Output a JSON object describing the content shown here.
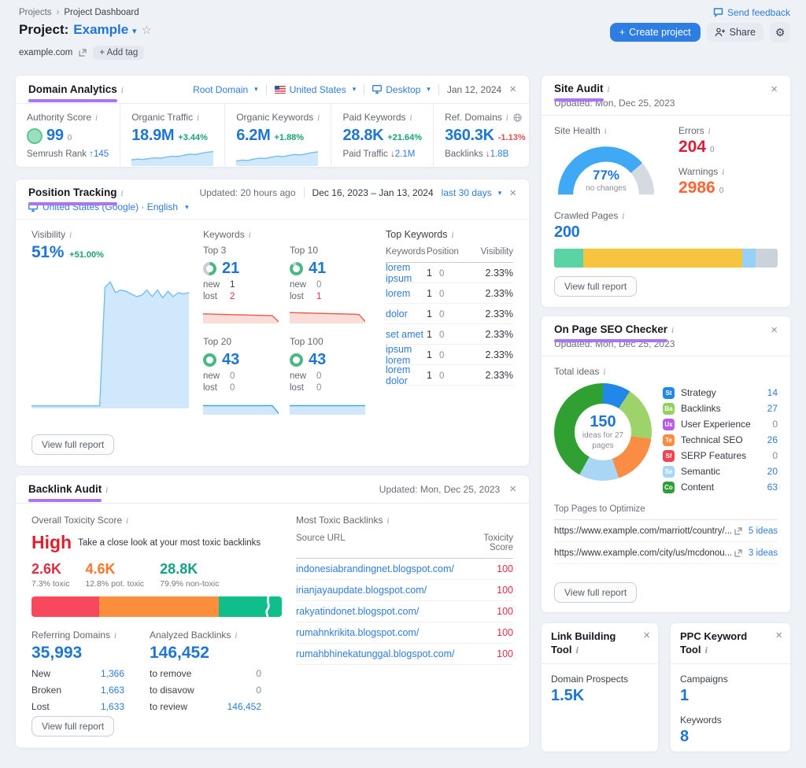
{
  "icons": {
    "chevron_down": "▾",
    "close": "×",
    "up_arrow": "↑",
    "down_arrow": "↓",
    "star": "☆",
    "gear": "⚙",
    "breadcrumb_sep": "›"
  },
  "header": {
    "breadcrumb_root": "Projects",
    "breadcrumb_current": "Project Dashboard",
    "send_feedback": "Send feedback",
    "project_label": "Project:",
    "project_name": "Example",
    "domain": "example.com",
    "add_tag": "+ Add tag",
    "create_project": "Create project",
    "create_project_plus": "+",
    "share": "Share"
  },
  "ui": {
    "view_full_report": "View full report"
  },
  "domain_analytics": {
    "title": "Domain Analytics",
    "filters": {
      "scope": "Root Domain",
      "country": "United States",
      "device": "Desktop",
      "date": "Jan 12, 2024"
    },
    "authority": {
      "label": "Authority Score",
      "value": "99",
      "delta": "0",
      "sub_label": "Semrush Rank",
      "sub_value": "145"
    },
    "organic_traffic": {
      "label": "Organic Traffic",
      "value": "18.9M",
      "change": "+3.44%"
    },
    "organic_keywords": {
      "label": "Organic Keywords",
      "value": "6.2M",
      "change": "+1.88%"
    },
    "paid_keywords": {
      "label": "Paid Keywords",
      "value": "28.8K",
      "change": "+21.64%",
      "sub_label": "Paid Traffic",
      "sub_value": "2.1M"
    },
    "ref_domains": {
      "label": "Ref. Domains",
      "value": "360.3K",
      "change": "-1.13%",
      "sub_label": "Backlinks",
      "sub_value": "1.8B"
    }
  },
  "position_tracking": {
    "title": "Position Tracking",
    "updated": "Updated: 20 hours ago",
    "date_range": "Dec 16, 2023 – Jan 13, 2024",
    "range_label": "last 30 days",
    "location": "United States (Google) · English",
    "visibility_label": "Visibility",
    "visibility_value": "51%",
    "visibility_change": "+51.00%",
    "keywords_label": "Keywords",
    "new_label": "new",
    "lost_label": "lost",
    "groups": [
      {
        "name": "Top 3",
        "value": "21",
        "new": "1",
        "lost": "2"
      },
      {
        "name": "Top 10",
        "value": "41",
        "new": "0",
        "lost": "1"
      },
      {
        "name": "Top 20",
        "value": "43",
        "new": "0",
        "lost": "0"
      },
      {
        "name": "Top 100",
        "value": "43",
        "new": "0",
        "lost": "0"
      }
    ],
    "top_keywords": {
      "title": "Top Keywords",
      "col_keywords": "Keywords",
      "col_position": "Position",
      "col_visibility": "Visibility",
      "rows": [
        {
          "keyword": "lorem ipsum",
          "position": "1",
          "delta": "0",
          "visibility": "2.33%"
        },
        {
          "keyword": "lorem",
          "position": "1",
          "delta": "0",
          "visibility": "2.33%"
        },
        {
          "keyword": "dolor",
          "position": "1",
          "delta": "0",
          "visibility": "2.33%"
        },
        {
          "keyword": "set amet",
          "position": "1",
          "delta": "0",
          "visibility": "2.33%"
        },
        {
          "keyword": "ipsum lorem",
          "position": "1",
          "delta": "0",
          "visibility": "2.33%"
        },
        {
          "keyword": "lorem dolor",
          "position": "1",
          "delta": "0",
          "visibility": "2.33%"
        }
      ]
    }
  },
  "backlink_audit": {
    "title": "Backlink Audit",
    "updated": "Updated: Mon, Dec 25, 2023",
    "toxicity_label": "Overall Toxicity Score",
    "severity": "High",
    "severity_note": "Take a close look at your most toxic backlinks",
    "toxic": {
      "value": "2.6K",
      "label": "7.3% toxic"
    },
    "pot_toxic": {
      "value": "4.6K",
      "label": "12.8% pot. toxic"
    },
    "non_toxic": {
      "value": "28.8K",
      "label": "79.9% non-toxic"
    },
    "referring": {
      "label": "Referring Domains",
      "value": "35,993",
      "rows": [
        {
          "l": "New",
          "v": "1,366"
        },
        {
          "l": "Broken",
          "v": "1,663"
        },
        {
          "l": "Lost",
          "v": "1,633"
        }
      ]
    },
    "analyzed": {
      "label": "Analyzed Backlinks",
      "value": "146,452",
      "rows": [
        {
          "l": "to remove",
          "v": "0"
        },
        {
          "l": "to disavow",
          "v": "0"
        },
        {
          "l": "to review",
          "v": "146,452"
        }
      ]
    },
    "most_toxic": {
      "title": "Most Toxic Backlinks",
      "col_url": "Source URL",
      "col_score": "Toxicity Score",
      "rows": [
        {
          "url": "indonesiabrandingnet.blogspot.com/",
          "score": "100"
        },
        {
          "url": "irianjayaupdate.blogspot.com/",
          "score": "100"
        },
        {
          "url": "rakyatindonet.blogspot.com/",
          "score": "100"
        },
        {
          "url": "rumahnkrikita.blogspot.com/",
          "score": "100"
        },
        {
          "url": "rumahbhinekatunggal.blogspot.com/",
          "score": "100"
        }
      ]
    }
  },
  "site_audit": {
    "title": "Site Audit",
    "updated": "Updated: Mon, Dec 25, 2023",
    "site_health_label": "Site Health",
    "health_value": "77%",
    "health_note": "no changes",
    "errors_label": "Errors",
    "errors_value": "204",
    "errors_delta": "0",
    "warnings_label": "Warnings",
    "warnings_value": "2986",
    "warnings_delta": "0",
    "crawled_label": "Crawled Pages",
    "crawled_value": "200"
  },
  "on_page": {
    "title": "On Page SEO Checker",
    "updated": "Updated: Mon, Dec 25, 2023",
    "total_ideas_label": "Total ideas",
    "donut_value": "150",
    "donut_caption": "ideas for 27 pages",
    "legend": [
      {
        "badge": "St",
        "color": "#2188ea",
        "label": "Strategy",
        "count": "14"
      },
      {
        "badge": "Ba",
        "color": "#94cf60",
        "label": "Backlinks",
        "count": "27"
      },
      {
        "badge": "Ux",
        "color": "#b55ce8",
        "label": "User Experience",
        "count": "0"
      },
      {
        "badge": "Te",
        "color": "#fb8c44",
        "label": "Technical SEO",
        "count": "26"
      },
      {
        "badge": "Sf",
        "color": "#f4434f",
        "label": "SERP Features",
        "count": "0"
      },
      {
        "badge": "Se",
        "color": "#a9d6f4",
        "label": "Semantic",
        "count": "20"
      },
      {
        "badge": "Co",
        "color": "#2f9e3a",
        "label": "Content",
        "count": "63"
      }
    ],
    "top_pages_label": "Top Pages to Optimize",
    "pages": [
      {
        "url": "https://www.example.com/marriott/country/...",
        "ideas": "5 ideas"
      },
      {
        "url": "https://www.example.com/city/us/mcdonou...",
        "ideas": "3 ideas"
      }
    ]
  },
  "link_building": {
    "title": "Link Building Tool",
    "prospects_label": "Domain Prospects",
    "prospects_value": "1.5K"
  },
  "ppc": {
    "title": "PPC Keyword Tool",
    "campaigns_label": "Campaigns",
    "campaigns_value": "1",
    "keywords_label": "Keywords",
    "keywords_value": "8"
  },
  "charts": {
    "organic_traffic_spark": {
      "type": "area",
      "color": "#74bdee",
      "fill": "#cfe8fb",
      "max": 100,
      "values": [
        38,
        42,
        40,
        46,
        50,
        48,
        55,
        60,
        58,
        66,
        72,
        70,
        78,
        84,
        88
      ]
    },
    "organic_keywords_spark": {
      "type": "area",
      "color": "#74bdee",
      "fill": "#cfe8fb",
      "max": 100,
      "values": [
        30,
        36,
        34,
        42,
        48,
        46,
        54,
        60,
        57,
        64,
        70,
        68,
        74,
        82,
        86
      ]
    },
    "visibility_chart": {
      "type": "area",
      "color": "#74bdee",
      "fill": "#cfe8fb",
      "max": 100,
      "values": [
        2,
        2,
        2,
        2,
        2,
        2,
        2,
        2,
        2,
        2,
        2,
        2,
        2,
        2,
        92,
        96,
        88,
        90,
        89,
        87,
        85,
        86,
        90,
        85,
        90,
        84,
        89,
        85,
        88,
        87,
        88
      ]
    },
    "top3_spark": {
      "type": "area",
      "color": "#e85b4c",
      "fill": "#fadcd9",
      "max": 100,
      "values": [
        58,
        57,
        56,
        55,
        54,
        53,
        52,
        51,
        50,
        49,
        48,
        47,
        10
      ]
    },
    "top10_spark": {
      "type": "area",
      "color": "#e85b4c",
      "fill": "#fadcd9",
      "max": 100,
      "values": [
        66,
        65,
        64,
        63,
        62,
        61,
        60,
        59,
        58,
        57,
        56,
        55,
        12
      ]
    },
    "top20_spark": {
      "type": "area",
      "color": "#43a5e8",
      "fill": "#cfe8fb",
      "max": 100,
      "values": [
        55,
        55,
        55,
        55,
        55,
        55,
        55,
        55,
        55,
        55,
        55,
        55,
        8
      ]
    },
    "top100_spark": {
      "type": "area",
      "color": "#43a5e8",
      "fill": "#cfe8fb",
      "max": 100,
      "values": [
        55,
        55,
        55,
        55,
        55,
        55,
        55,
        55,
        55,
        55,
        55,
        55,
        55
      ]
    },
    "top3_ring": {
      "type": "ring",
      "pct": 52,
      "color": "#49b882",
      "track": "#c9cdd4"
    },
    "top10_ring": {
      "type": "ring",
      "pct": 88,
      "color": "#49b882",
      "track": "#c9cdd4"
    },
    "top20_ring": {
      "type": "ring",
      "pct": 100,
      "color": "#49b882",
      "track": "#c9cdd4"
    },
    "top100_ring": {
      "type": "ring",
      "pct": 100,
      "color": "#49b882",
      "track": "#c9cdd4"
    },
    "toxicity_bar": {
      "type": "segbar",
      "break_pct": 93,
      "segments": [
        {
          "color": "#f8485e",
          "pct": 27
        },
        {
          "color": "#fb8e3c",
          "pct": 48
        },
        {
          "color": "#0fbe8b",
          "pct": 25
        }
      ]
    },
    "crawled_bar": {
      "type": "segbar",
      "segments": [
        {
          "color": "#5bd3a4",
          "pct": 13
        },
        {
          "color": "#f6c43e",
          "pct": 71
        },
        {
          "color": "#97d1f6",
          "pct": 6
        },
        {
          "color": "#ccd2da",
          "pct": 10
        }
      ]
    },
    "site_health_gauge": {
      "type": "gauge",
      "pct": 77,
      "color": "#3fa9f5",
      "track": "#d5dae1"
    },
    "ideas_donut": {
      "type": "donut",
      "values": [
        14,
        27,
        26,
        20,
        63
      ],
      "colors": [
        "#2188ea",
        "#9ed26b",
        "#fb8c44",
        "#a9d6f4",
        "#31a033"
      ]
    }
  }
}
